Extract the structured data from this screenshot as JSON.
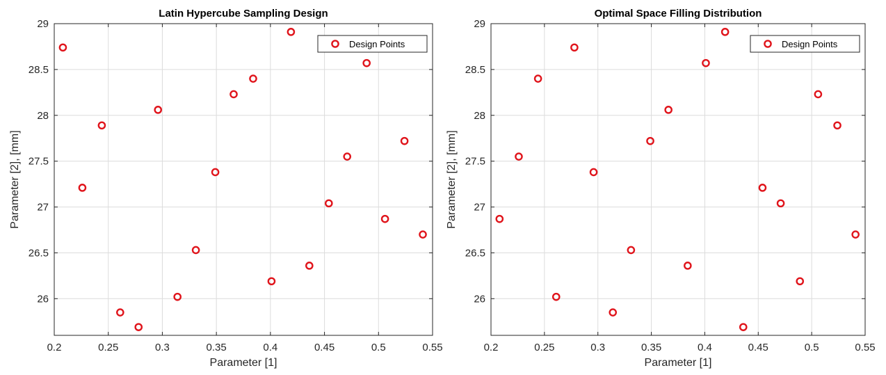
{
  "chart_data": [
    {
      "type": "scatter",
      "title": "Latin Hypercube Sampling Design",
      "xlabel": "Parameter [1]",
      "ylabel": "Parameter [2], [mm]",
      "xlim": [
        0.2,
        0.55
      ],
      "ylim": [
        25.6,
        29
      ],
      "xticks": [
        "0.2",
        "0.25",
        "0.3",
        "0.35",
        "0.4",
        "0.45",
        "0.5",
        "0.55"
      ],
      "yticks": [
        "26",
        "26.5",
        "27",
        "27.5",
        "28",
        "28.5",
        "29"
      ],
      "xtick_values": [
        0.2,
        0.25,
        0.3,
        0.35,
        0.4,
        0.45,
        0.5,
        0.55
      ],
      "ytick_values": [
        26,
        26.5,
        27,
        27.5,
        28,
        28.5,
        29
      ],
      "grid": true,
      "legend_position": "top-right",
      "marker_color": "#e0141b",
      "series": [
        {
          "name": "Design Points",
          "x": [
            0.208,
            0.226,
            0.244,
            0.261,
            0.278,
            0.296,
            0.314,
            0.331,
            0.349,
            0.366,
            0.384,
            0.401,
            0.419,
            0.436,
            0.454,
            0.471,
            0.489,
            0.506,
            0.524,
            0.541
          ],
          "y": [
            28.74,
            27.21,
            27.89,
            25.85,
            25.69,
            28.06,
            26.02,
            26.53,
            27.38,
            28.23,
            28.4,
            26.19,
            28.91,
            26.36,
            27.04,
            27.55,
            28.57,
            26.87,
            27.72,
            26.7
          ]
        }
      ]
    },
    {
      "type": "scatter",
      "title": "Optimal Space Filling Distribution",
      "xlabel": "Parameter [1]",
      "ylabel": "Parameter [2], [mm]",
      "xlim": [
        0.2,
        0.55
      ],
      "ylim": [
        25.6,
        29
      ],
      "xticks": [
        "0.2",
        "0.25",
        "0.3",
        "0.35",
        "0.4",
        "0.45",
        "0.5",
        "0.55"
      ],
      "yticks": [
        "26",
        "26.5",
        "27",
        "27.5",
        "28",
        "28.5",
        "29"
      ],
      "xtick_values": [
        0.2,
        0.25,
        0.3,
        0.35,
        0.4,
        0.45,
        0.5,
        0.55
      ],
      "ytick_values": [
        26,
        26.5,
        27,
        27.5,
        28,
        28.5,
        29
      ],
      "grid": true,
      "legend_position": "top-right",
      "marker_color": "#e0141b",
      "series": [
        {
          "name": "Design Points",
          "x": [
            0.208,
            0.226,
            0.244,
            0.261,
            0.278,
            0.296,
            0.314,
            0.331,
            0.349,
            0.366,
            0.384,
            0.401,
            0.419,
            0.436,
            0.454,
            0.471,
            0.489,
            0.506,
            0.524,
            0.541
          ],
          "y": [
            26.87,
            27.55,
            28.4,
            26.02,
            28.74,
            27.38,
            25.85,
            26.53,
            27.72,
            28.06,
            26.36,
            28.57,
            28.91,
            25.69,
            27.21,
            27.04,
            26.19,
            28.23,
            27.89,
            26.7
          ]
        }
      ]
    }
  ]
}
